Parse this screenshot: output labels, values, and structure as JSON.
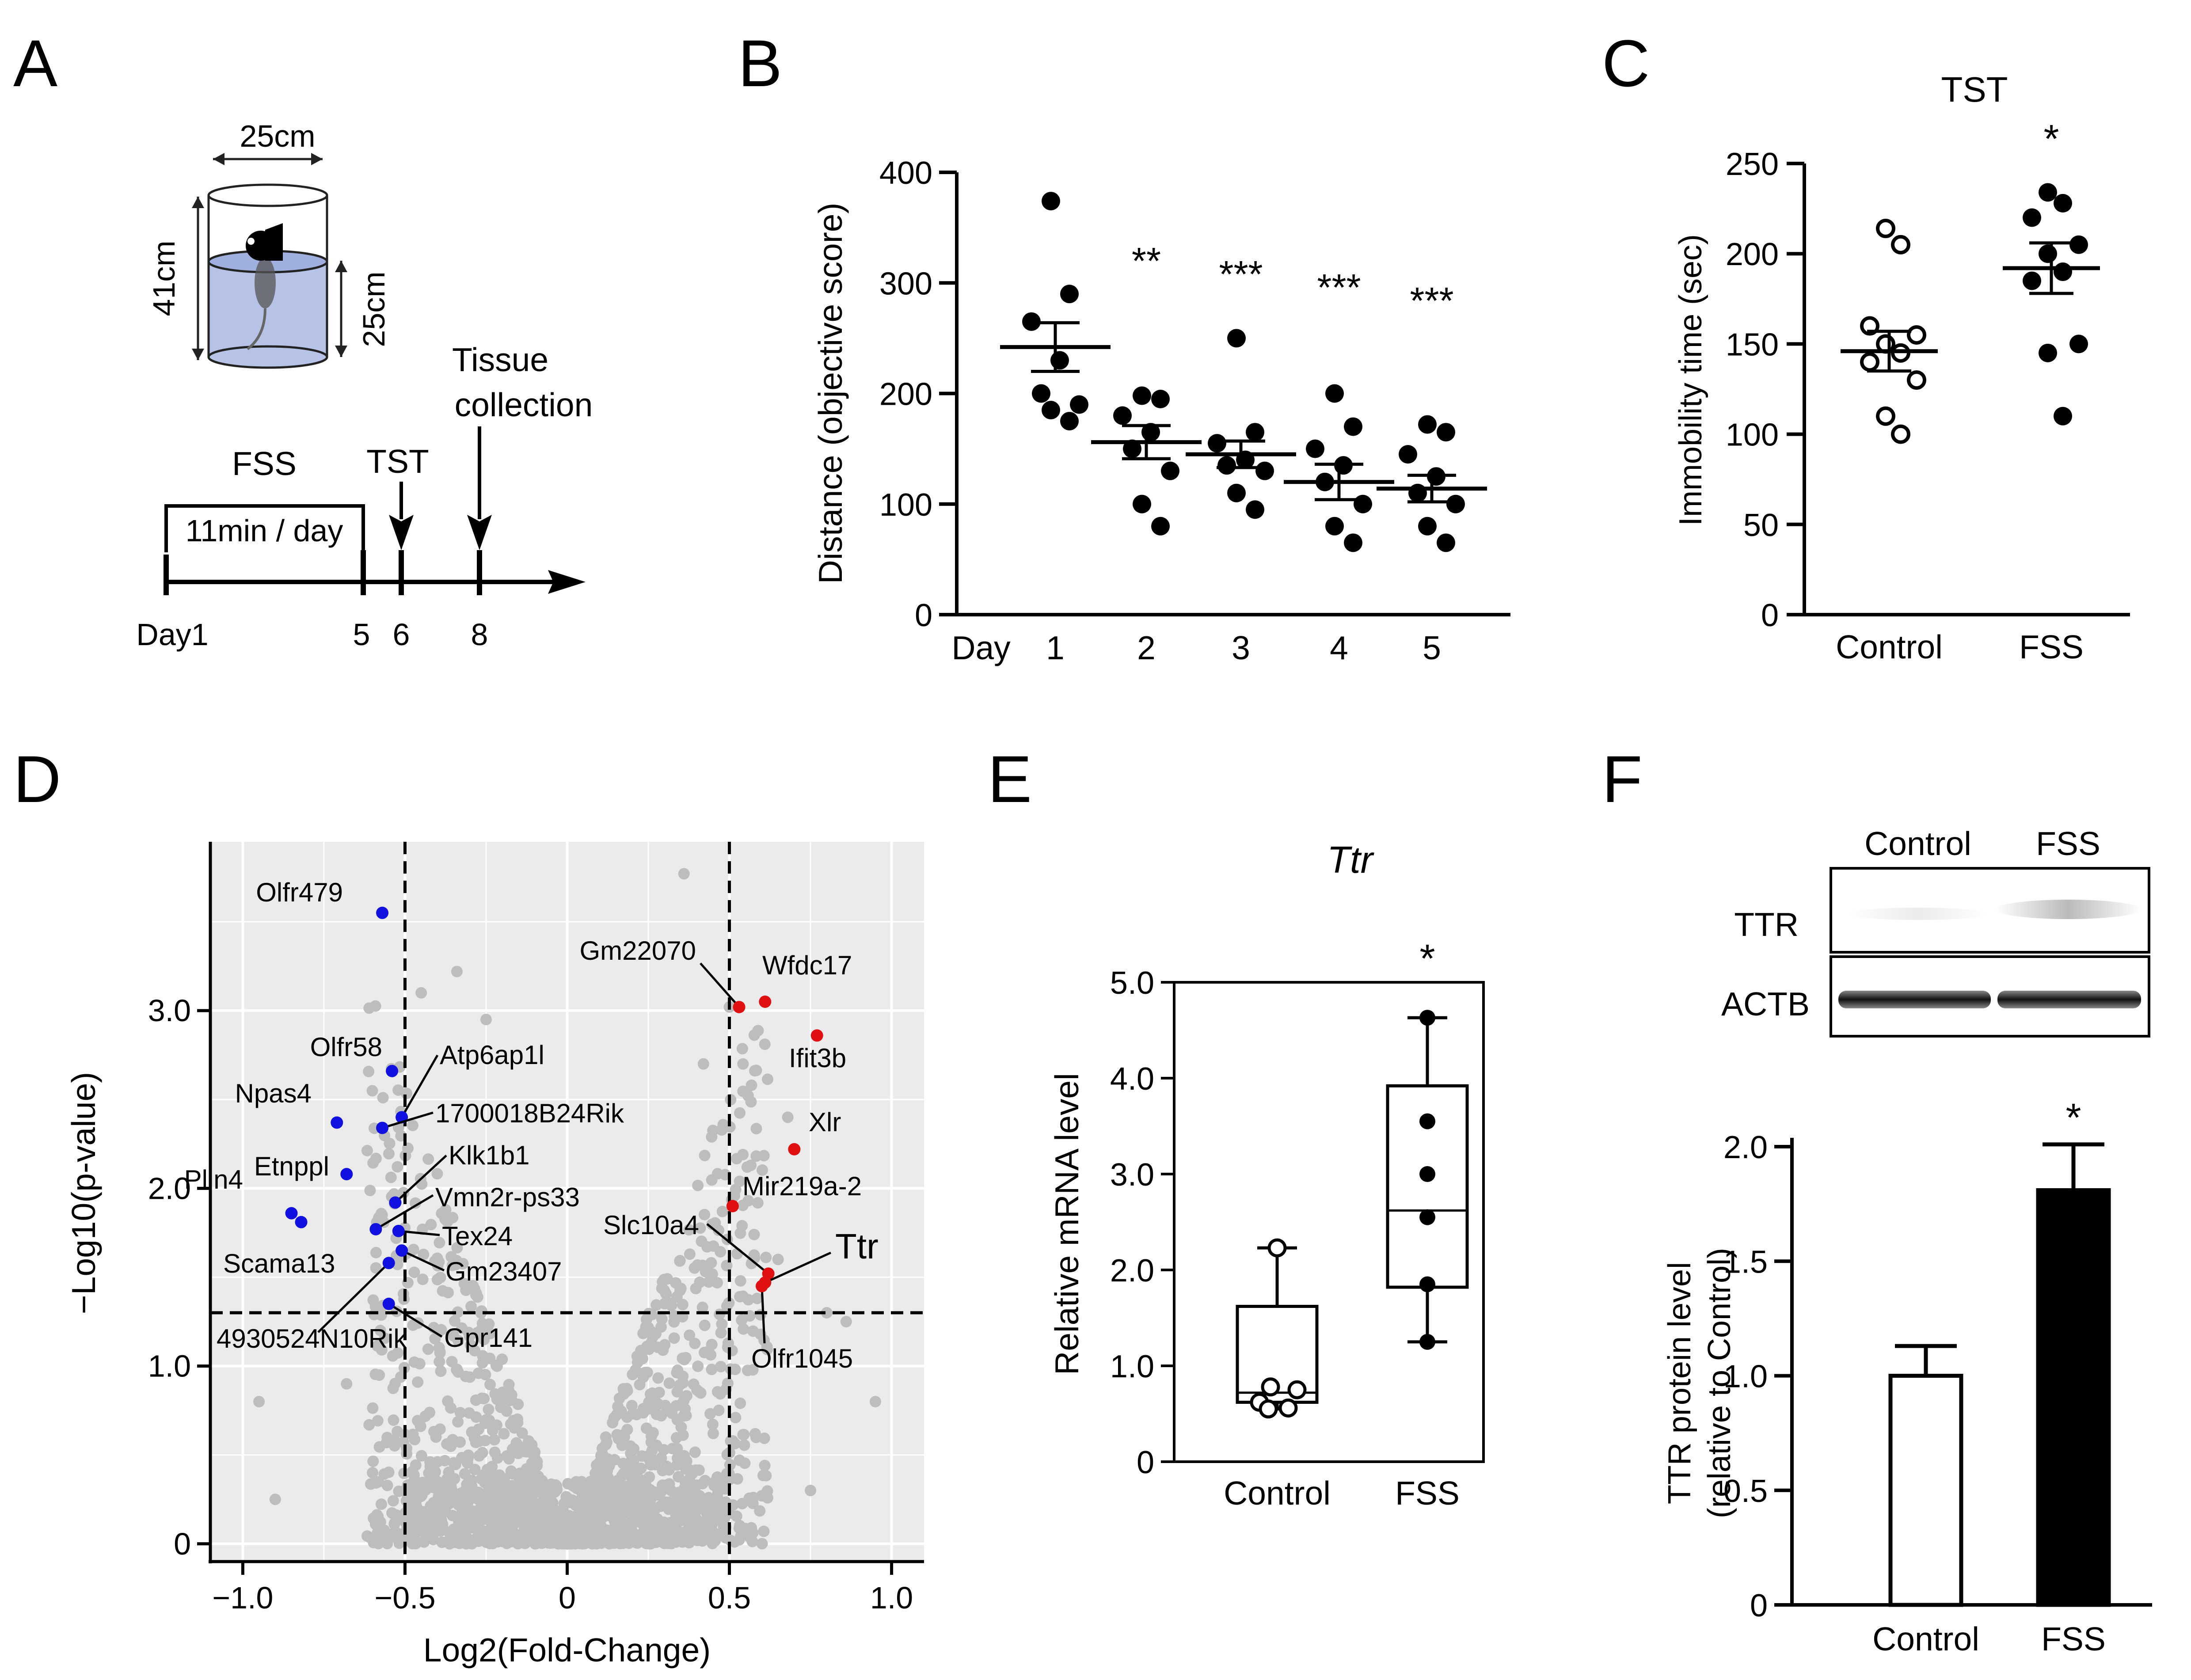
{
  "panels": {
    "a": {
      "letter": "A",
      "width_label": "25cm",
      "height_label": "41cm",
      "water_label": "25cm",
      "fss_label": "FSS",
      "duration_label": "11min / day",
      "tst_label": "TST",
      "tissue_label_1": "Tissue",
      "tissue_label_2": "collection",
      "day_label": "Day1",
      "day_ticks": [
        "5",
        "6",
        "8"
      ]
    },
    "b": {
      "letter": "B"
    },
    "c": {
      "letter": "C"
    },
    "d": {
      "letter": "D"
    },
    "e": {
      "letter": "E"
    },
    "f": {
      "letter": "F",
      "blot_col1": "Control",
      "blot_col2": "FSS",
      "blot_row1": "TTR",
      "blot_row2": "ACTB"
    }
  },
  "chart_data": [
    {
      "id": "B",
      "type": "scatter",
      "ylabel": "Distance (objective score)",
      "xlabel_prefix": "Day",
      "categories": [
        "1",
        "2",
        "3",
        "4",
        "5"
      ],
      "ylim": [
        0,
        400
      ],
      "yticks": [
        "0",
        "100",
        "200",
        "300",
        "400"
      ],
      "points": [
        [
          374,
          290,
          265,
          230,
          200,
          190,
          185,
          175
        ],
        [
          198,
          195,
          180,
          165,
          150,
          130,
          100,
          80
        ],
        [
          250,
          165,
          155,
          140,
          135,
          130,
          110,
          95
        ],
        [
          200,
          170,
          150,
          135,
          120,
          100,
          80,
          65
        ],
        [
          172,
          165,
          145,
          125,
          110,
          100,
          80,
          65
        ]
      ],
      "mean": [
        242,
        156,
        145,
        120,
        114
      ],
      "sem": [
        22,
        15,
        12,
        16,
        12
      ],
      "significance": [
        "",
        "**",
        "***",
        "***",
        "***"
      ]
    },
    {
      "id": "C",
      "type": "scatter",
      "title": "TST",
      "ylabel": "Immobility time (sec)",
      "categories": [
        "Control",
        "FSS"
      ],
      "ylim": [
        0,
        250
      ],
      "yticks": [
        "0",
        "50",
        "100",
        "150",
        "200",
        "250"
      ],
      "points": [
        [
          214,
          205,
          160,
          155,
          150,
          145,
          140,
          130,
          110,
          100
        ],
        [
          234,
          228,
          220,
          205,
          200,
          190,
          185,
          150,
          145,
          110
        ]
      ],
      "mean": [
        146,
        192
      ],
      "sem": [
        11,
        14
      ],
      "significance": [
        "",
        "*"
      ]
    },
    {
      "id": "D",
      "type": "scatter",
      "xlabel": "Log2(Fold-Change)",
      "ylabel": "−Log10(p-value)",
      "xlim": [
        -1.1,
        1.1
      ],
      "ylim": [
        -0.1,
        3.95
      ],
      "xticks": [
        "−1.0",
        "−0.5",
        "0",
        "0.5",
        "1.0"
      ],
      "yticks": [
        "0",
        "1.0",
        "2.0",
        "3.0"
      ],
      "vlines": [
        -0.5,
        0.5
      ],
      "hline": 1.3,
      "down_genes": [
        {
          "name": "Olfr479",
          "x": -0.57,
          "y": 3.55
        },
        {
          "name": "Olfr58",
          "x": -0.54,
          "y": 2.66
        },
        {
          "name": "Atp6ap1l",
          "x": -0.51,
          "y": 2.4
        },
        {
          "name": "Npas4",
          "x": -0.71,
          "y": 2.37
        },
        {
          "name": "1700018B24Rik",
          "x": -0.57,
          "y": 2.34
        },
        {
          "name": "Etnppl",
          "x": -0.68,
          "y": 2.08
        },
        {
          "name": "Klk1b1",
          "x": -0.53,
          "y": 1.92
        },
        {
          "name": "Plin4",
          "x": -0.85,
          "y": 1.86
        },
        {
          "name": "Scama13",
          "x": -0.82,
          "y": 1.81
        },
        {
          "name": "Vmn2r-ps33",
          "x": -0.59,
          "y": 1.77
        },
        {
          "name": "Tex24",
          "x": -0.52,
          "y": 1.76
        },
        {
          "name": "Gm23407",
          "x": -0.51,
          "y": 1.65
        },
        {
          "name": "4930524N10Rik",
          "x": -0.55,
          "y": 1.58
        },
        {
          "name": "Gpr141",
          "x": -0.55,
          "y": 1.35
        }
      ],
      "up_genes": [
        {
          "name": "Gm22070",
          "x": 0.53,
          "y": 3.02
        },
        {
          "name": "Wfdc17",
          "x": 0.61,
          "y": 3.05
        },
        {
          "name": "Ifit3b",
          "x": 0.77,
          "y": 2.86
        },
        {
          "name": "Xlr",
          "x": 0.7,
          "y": 2.22
        },
        {
          "name": "Mir219a-2",
          "x": 0.51,
          "y": 1.9
        },
        {
          "name": "Slc10a4",
          "x": 0.62,
          "y": 1.52
        },
        {
          "name": "Ttr",
          "x": 0.61,
          "y": 1.47
        },
        {
          "name": "Olfr1045",
          "x": 0.6,
          "y": 1.45
        }
      ]
    },
    {
      "id": "E",
      "type": "box",
      "title": "Ttr",
      "ylabel": "Relative mRNA level",
      "categories": [
        "Control",
        "FSS"
      ],
      "ylim": [
        0,
        5
      ],
      "yticks": [
        "0",
        "1.0",
        "2.0",
        "3.0",
        "4.0",
        "5.0"
      ],
      "boxes": [
        {
          "min": 0.55,
          "q1": 0.62,
          "median": 0.72,
          "q3": 1.62,
          "max": 2.23
        },
        {
          "min": 1.25,
          "q1": 1.82,
          "median": 2.62,
          "q3": 3.92,
          "max": 4.63
        }
      ],
      "points": [
        [
          2.23,
          0.78,
          0.75,
          0.62,
          0.56,
          0.55
        ],
        [
          4.63,
          3.55,
          3.0,
          2.55,
          1.85,
          1.25
        ]
      ],
      "significance": [
        "",
        "*"
      ]
    },
    {
      "id": "F",
      "type": "bar",
      "ylabel_1": "TTR protein level",
      "ylabel_2": "(relative to Control)",
      "categories": [
        "Control",
        "FSS"
      ],
      "values": [
        1.0,
        1.81
      ],
      "errors": [
        0.13,
        0.2
      ],
      "ylim": [
        0,
        2
      ],
      "yticks": [
        "0",
        "0.5",
        "1.0",
        "1.5",
        "2.0"
      ],
      "significance": [
        "",
        "*"
      ],
      "colors": [
        "#ffffff",
        "#000000"
      ]
    }
  ],
  "colors": {
    "down": "#1010e0",
    "up": "#e01010",
    "background_dots": "#bdbdbd",
    "plot_bg": "#ebebeb",
    "water": "#b6c3e6"
  }
}
